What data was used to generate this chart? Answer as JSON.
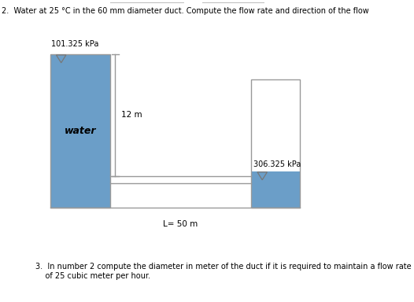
{
  "title2": "2.  Water at 25 °C in the 60 mm diameter duct. Compute the flow rate and direction of the flow",
  "title3": "3.  In number 2 compute the diameter in meter of the duct if it is required to maintain a flow rate\n    of 25 cubic meter per hour.",
  "label_water": "water",
  "label_pressure_left": "101.325 kPa",
  "label_pressure_right": "306.325 kPa",
  "label_height": "12 m",
  "label_length": "L= 50 m",
  "water_color": "#6b9ec8",
  "bg_color": "#ffffff",
  "box_edge_color": "#999999",
  "fig_w": 5.26,
  "fig_h": 3.84,
  "dpi": 100
}
